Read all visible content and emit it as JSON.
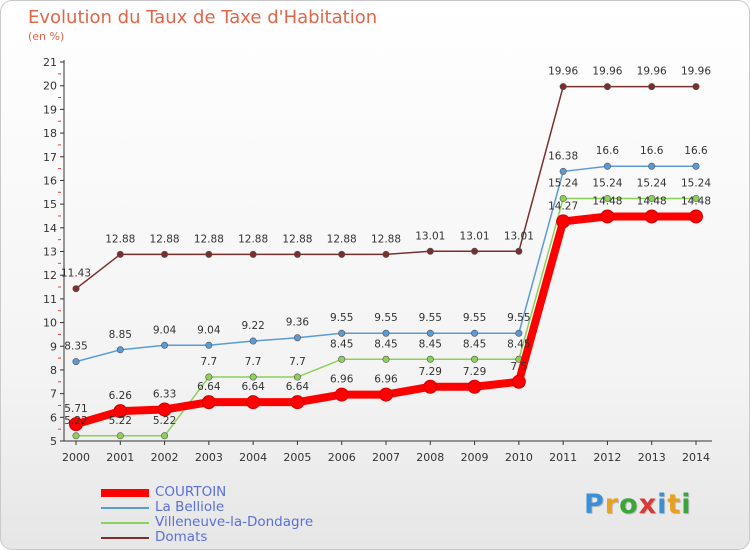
{
  "title": "Evolution du Taux de Taxe d'Habitation",
  "subtitle": "(en %)",
  "logo": "Proxiti",
  "chart_data": {
    "type": "line",
    "x": [
      2000,
      2001,
      2002,
      2003,
      2004,
      2005,
      2006,
      2007,
      2008,
      2009,
      2010,
      2011,
      2012,
      2013,
      2014
    ],
    "ylim": [
      5,
      21
    ],
    "yticks": [
      5,
      6,
      7,
      8,
      9,
      10,
      11,
      12,
      13,
      14,
      15,
      16,
      17,
      18,
      19,
      20,
      21
    ],
    "grid": false,
    "legend_position": "bottom-left",
    "series": [
      {
        "name": "COURTOIN",
        "color": "#ff0000",
        "values": [
          5.71,
          6.26,
          6.33,
          6.64,
          6.64,
          6.64,
          6.96,
          6.96,
          7.29,
          7.29,
          7.5,
          14.27,
          14.48,
          14.48,
          14.48
        ],
        "labels": [
          "5.71",
          "6.26",
          "6.33",
          "6.64",
          "6.64",
          "6.64",
          "6.96",
          "6.96",
          "7.29",
          "7.29",
          "7.5",
          "14.27",
          "14.48",
          "14.48",
          "14.48"
        ]
      },
      {
        "name": "La Belliole",
        "color": "#5b9bd5",
        "values": [
          8.35,
          8.85,
          9.04,
          9.04,
          9.22,
          9.36,
          9.55,
          9.55,
          9.55,
          9.55,
          9.55,
          16.38,
          16.6,
          16.6,
          16.6
        ],
        "labels": [
          "8.35",
          "8.85",
          "9.04",
          "9.04",
          "9.22",
          "9.36",
          "9.55",
          "9.55",
          "9.55",
          "9.55",
          "9.55",
          "16.38",
          "16.6",
          "16.6",
          "16.6"
        ]
      },
      {
        "name": "Villeneuve-la-Dondagre",
        "color": "#8ed15a",
        "values": [
          5.22,
          5.22,
          5.22,
          7.7,
          7.7,
          7.7,
          8.45,
          8.45,
          8.45,
          8.45,
          8.45,
          15.24,
          15.24,
          15.24,
          15.24
        ],
        "labels": [
          "5.22",
          "5.22",
          "5.22",
          "7.7",
          "7.7",
          "7.7",
          "8.45",
          "8.45",
          "8.45",
          "8.45",
          "8.45",
          "15.24",
          "15.24",
          "15.24",
          "15.24"
        ]
      },
      {
        "name": "Domats",
        "color": "#7a2f2f",
        "values": [
          11.43,
          12.88,
          12.88,
          12.88,
          12.88,
          12.88,
          12.88,
          12.88,
          13.01,
          13.01,
          13.01,
          19.96,
          19.96,
          19.96,
          19.96
        ],
        "labels": [
          "11.43",
          "12.88",
          "12.88",
          "12.88",
          "12.88",
          "12.88",
          "12.88",
          "12.88",
          "13.01",
          "13.01",
          "13.01",
          "19.96",
          "19.96",
          "19.96",
          "19.96"
        ]
      }
    ]
  }
}
